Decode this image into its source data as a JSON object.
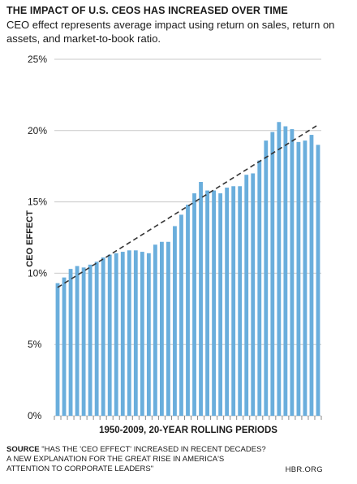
{
  "header": {
    "title": "THE IMPACT OF U.S. CEOS HAS INCREASED OVER TIME",
    "subtitle": "CEO effect represents average impact using return on sales, return on assets, and market-to-book ratio."
  },
  "footer": {
    "source_label": "SOURCE",
    "source_text": "\"HAS THE 'CEO EFFECT' INCREASED IN RECENT DECADES? A NEW EXPLANATION FOR THE GREAT RISE IN AMERICA'S ATTENTION TO CORPORATE LEADERS\"",
    "brand": "HBR.ORG"
  },
  "colors": {
    "bar": "#6aaedc",
    "grid": "#c8c8c8",
    "trend": "#333333"
  },
  "chart_data": {
    "type": "bar",
    "xlabel": "1950-2009, 20-YEAR ROLLING PERIODS",
    "ylabel": "CEO EFFECT",
    "ylim": [
      0,
      25
    ],
    "yticks": [
      0,
      5,
      10,
      15,
      20,
      25
    ],
    "ytick_labels": [
      "0%",
      "5%",
      "10%",
      "15%",
      "20%",
      "25%"
    ],
    "grid": true,
    "values": [
      9.3,
      9.7,
      10.3,
      10.5,
      10.4,
      10.6,
      10.8,
      11.1,
      11.3,
      11.4,
      11.5,
      11.6,
      11.6,
      11.5,
      11.4,
      12.0,
      12.2,
      12.2,
      13.3,
      14.1,
      14.8,
      15.6,
      16.4,
      15.8,
      15.8,
      15.6,
      16.0,
      16.1,
      16.1,
      16.9,
      17.0,
      17.9,
      19.3,
      19.9,
      20.6,
      20.3,
      20.1,
      19.2,
      19.3,
      19.7,
      19.0
    ],
    "trendline": {
      "start": 9.0,
      "end": 20.4,
      "style": "dashed"
    }
  }
}
